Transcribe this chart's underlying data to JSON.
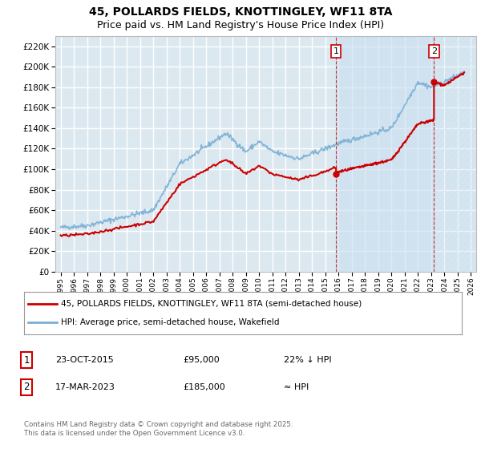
{
  "title": "45, POLLARDS FIELDS, KNOTTINGLEY, WF11 8TA",
  "subtitle": "Price paid vs. HM Land Registry's House Price Index (HPI)",
  "red_label": "45, POLLARDS FIELDS, KNOTTINGLEY, WF11 8TA (semi-detached house)",
  "blue_label": "HPI: Average price, semi-detached house, Wakefield",
  "marker1_date": 2015.81,
  "marker1_text": "23-OCT-2015",
  "marker1_price": "£95,000",
  "marker1_note": "22% ↓ HPI",
  "marker1_y": 95000,
  "marker2_date": 2023.21,
  "marker2_text": "17-MAR-2023",
  "marker2_price": "£185,000",
  "marker2_note": "≈ HPI",
  "marker2_y": 185000,
  "footer": "Contains HM Land Registry data © Crown copyright and database right 2025.\nThis data is licensed under the Open Government Licence v3.0.",
  "ylim": [
    0,
    230000
  ],
  "xlim_left": 1994.6,
  "xlim_right": 2026.4,
  "plot_bg_color": "#dce8f0",
  "shade_color": "#c8dff0",
  "grid_color": "#ffffff",
  "red_color": "#cc0000",
  "blue_color": "#7aafd4",
  "title_fontsize": 10,
  "subtitle_fontsize": 9
}
